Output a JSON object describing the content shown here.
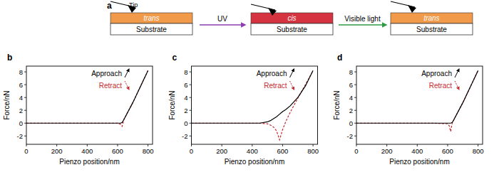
{
  "diagram": {
    "label": "a",
    "tip": "Tip",
    "steps": [
      {
        "layer": "trans",
        "substrate": "Substrate",
        "color": "#f09a4a"
      },
      {
        "layer": "cis",
        "substrate": "Substrate",
        "color": "#d63340"
      },
      {
        "layer": "trans",
        "substrate": "Substrate",
        "color": "#f09a4a"
      }
    ],
    "arrows": [
      {
        "label": "UV",
        "color": "#8a3cb0"
      },
      {
        "label": "Visible light",
        "color": "#2f9a45"
      }
    ]
  },
  "chart_data": [
    {
      "type": "line",
      "title": "b",
      "x_label": "Pienzo position/nm",
      "y_label": "Force/nN",
      "x": [
        0,
        100,
        200,
        300,
        400,
        500,
        600,
        620,
        630,
        640,
        700,
        800
      ],
      "series": [
        {
          "name": "Approach",
          "color": "#000000",
          "line_style": "solid",
          "values": [
            0,
            0,
            0,
            0,
            0,
            0,
            0,
            0,
            0.1,
            0.5,
            3.2,
            8.2
          ]
        },
        {
          "name": "Retract",
          "color": "#c8282e",
          "line_style": "dashed",
          "values": [
            0,
            0,
            0,
            0,
            0,
            0,
            0,
            -0.2,
            -0.5,
            0.5,
            3.2,
            8.2
          ]
        }
      ],
      "xlim": [
        0,
        830
      ],
      "xticks": [
        0,
        200,
        400,
        600,
        800
      ],
      "ylim": [
        -3.3,
        8.9
      ],
      "yticks": [
        -2,
        0,
        2,
        4,
        6,
        8
      ],
      "legend": "top-right"
    },
    {
      "type": "line",
      "title": "c",
      "x_label": "Pienzo position/nm",
      "y_label": "Force/nN",
      "x": [
        0,
        100,
        200,
        300,
        400,
        450,
        500,
        520,
        540,
        560,
        580,
        590,
        600,
        620,
        650,
        700,
        750,
        800
      ],
      "series": [
        {
          "name": "Approach",
          "color": "#000000",
          "line_style": "solid",
          "values": [
            0,
            0,
            0,
            0,
            0,
            0,
            0.2,
            0.4,
            0.7,
            1.0,
            1.4,
            1.6,
            1.8,
            2.1,
            2.7,
            4.0,
            5.8,
            8.2
          ]
        },
        {
          "name": "Retract",
          "color": "#c8282e",
          "line_style": "dashed",
          "values": [
            0,
            0,
            0,
            0,
            0,
            0,
            -0.1,
            -0.3,
            -0.6,
            -1.2,
            -2.6,
            -1.8,
            -1.0,
            0.2,
            1.7,
            3.9,
            6.0,
            8.2
          ]
        }
      ],
      "xlim": [
        0,
        830
      ],
      "xticks": [
        0,
        200,
        400,
        600,
        800
      ],
      "ylim": [
        -3.3,
        8.9
      ],
      "yticks": [
        -2,
        0,
        2,
        4,
        6,
        8
      ],
      "legend": "top-right"
    },
    {
      "type": "line",
      "title": "d",
      "x_label": "Pienzo position/nm",
      "y_label": "Force/nN",
      "x": [
        0,
        100,
        200,
        300,
        400,
        500,
        600,
        610,
        620,
        630,
        640,
        700,
        800
      ],
      "series": [
        {
          "name": "Approach",
          "color": "#000000",
          "line_style": "solid",
          "values": [
            0,
            0,
            0,
            0,
            0,
            0,
            0,
            0,
            0,
            0.1,
            0.5,
            3.2,
            8.2
          ]
        },
        {
          "name": "Retract",
          "color": "#c8282e",
          "line_style": "dashed",
          "values": [
            0,
            0,
            0,
            0,
            0,
            0,
            -0.1,
            -0.4,
            -1.3,
            0,
            0.5,
            3.2,
            8.2
          ]
        }
      ],
      "xlim": [
        0,
        830
      ],
      "xticks": [
        0,
        200,
        400,
        600,
        800
      ],
      "ylim": [
        -3.3,
        8.9
      ],
      "yticks": [
        -2,
        0,
        2,
        4,
        6,
        8
      ],
      "legend": "top-right"
    }
  ]
}
